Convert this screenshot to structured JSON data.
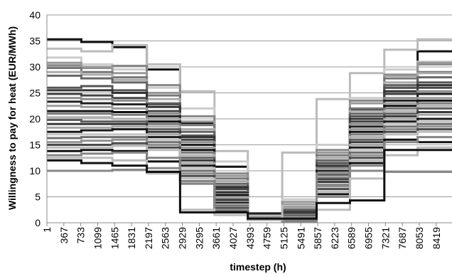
{
  "chart_data": {
    "type": "line",
    "step": true,
    "title": "",
    "xlabel": "timestep (h)",
    "ylabel": "Willingness  to pay for heat (EUR/MWh)",
    "xlim": [
      1,
      8760
    ],
    "ylim": [
      0,
      40
    ],
    "yticks": [
      0,
      5,
      10,
      15,
      20,
      25,
      30,
      35,
      40
    ],
    "xticks": [
      1,
      367,
      733,
      1099,
      1465,
      1831,
      2197,
      2563,
      2929,
      3295,
      3661,
      4027,
      4393,
      4759,
      5125,
      5491,
      5857,
      6223,
      6589,
      6955,
      7321,
      7687,
      8053,
      8419
    ],
    "grid": "horizontal",
    "legend": "none",
    "month_starts": [
      1,
      745,
      1417,
      2161,
      2881,
      3625,
      4345,
      5089,
      5833,
      6553,
      7297,
      8017,
      8760
    ],
    "series": [
      {
        "color": "#111111",
        "width": 3,
        "values": [
          35.3,
          34.8,
          33.8,
          29.5,
          19.2,
          10.8,
          1.8,
          1.0,
          11.5,
          21.8,
          26.0,
          33.0,
          35.6
        ]
      },
      {
        "color": "#bbbbbb",
        "width": 3,
        "values": [
          33.5,
          33.0,
          34.2,
          30.5,
          25.3,
          13.8,
          0.8,
          13.5,
          23.8,
          28.8,
          33.3,
          35.3,
          35.0
        ]
      },
      {
        "color": "#cccccc",
        "width": 3,
        "values": [
          31.8,
          30.5,
          29.5,
          26.0,
          22.0,
          11.8,
          1.3,
          4.5,
          15.0,
          24.0,
          29.5,
          31.0,
          31.0
        ]
      },
      {
        "color": "#888888",
        "width": 3,
        "values": [
          30.3,
          29.8,
          30.2,
          26.5,
          20.5,
          9.5,
          0.8,
          3.5,
          14.0,
          23.5,
          28.5,
          30.5,
          30.3
        ]
      },
      {
        "color": "#999999",
        "width": 3,
        "values": [
          30.8,
          30.0,
          28.8,
          25.0,
          19.5,
          9.0,
          1.0,
          4.0,
          13.5,
          23.0,
          28.3,
          30.8,
          30.5
        ]
      },
      {
        "color": "#777777",
        "width": 3,
        "values": [
          29.8,
          29.0,
          28.0,
          24.5,
          18.8,
          8.5,
          1.3,
          3.0,
          13.0,
          22.0,
          27.8,
          29.0,
          29.5
        ]
      },
      {
        "color": "#aaaaaa",
        "width": 3,
        "values": [
          29.0,
          28.5,
          27.5,
          23.8,
          18.0,
          8.0,
          0.6,
          2.8,
          12.5,
          21.5,
          27.0,
          28.8,
          28.5
        ]
      },
      {
        "color": "#666666",
        "width": 3,
        "values": [
          28.3,
          27.8,
          27.0,
          23.0,
          17.5,
          7.5,
          1.5,
          2.5,
          12.0,
          21.0,
          26.5,
          28.0,
          28.0
        ]
      },
      {
        "color": "#555555",
        "width": 3,
        "values": [
          26.0,
          26.3,
          25.5,
          22.8,
          16.8,
          7.0,
          0.8,
          2.3,
          11.5,
          20.5,
          26.0,
          27.0,
          27.5
        ]
      },
      {
        "color": "#333333",
        "width": 3,
        "values": [
          25.5,
          25.5,
          25.0,
          22.3,
          16.5,
          6.8,
          1.0,
          2.0,
          11.0,
          20.0,
          25.3,
          26.5,
          26.8
        ]
      },
      {
        "color": "#444444",
        "width": 3,
        "values": [
          24.8,
          24.5,
          24.0,
          21.5,
          16.0,
          6.5,
          0.8,
          1.8,
          10.8,
          19.5,
          24.8,
          26.0,
          26.0
        ]
      },
      {
        "color": "#8c8c8c",
        "width": 3,
        "values": [
          24.0,
          23.8,
          23.5,
          21.0,
          15.5,
          6.0,
          1.2,
          1.5,
          10.5,
          19.0,
          24.0,
          25.3,
          25.5
        ]
      },
      {
        "color": "#222222",
        "width": 3,
        "values": [
          23.3,
          23.0,
          22.8,
          20.5,
          15.0,
          5.8,
          0.8,
          1.3,
          10.0,
          18.5,
          23.5,
          24.8,
          24.8
        ]
      },
      {
        "color": "#9a9a9a",
        "width": 3,
        "values": [
          22.5,
          22.3,
          22.0,
          20.0,
          14.5,
          5.5,
          1.0,
          1.2,
          9.5,
          18.0,
          23.0,
          24.0,
          24.0
        ]
      },
      {
        "color": "#111111",
        "width": 3,
        "values": [
          21.5,
          21.5,
          21.3,
          19.5,
          14.0,
          5.3,
          0.8,
          1.0,
          9.2,
          17.5,
          22.5,
          23.5,
          23.3
        ]
      },
      {
        "color": "#7a7a7a",
        "width": 3,
        "values": [
          21.0,
          21.0,
          20.8,
          19.0,
          13.5,
          5.0,
          1.3,
          1.0,
          9.0,
          17.0,
          22.0,
          23.0,
          22.8
        ]
      },
      {
        "color": "#b0b0b0",
        "width": 3,
        "values": [
          20.3,
          20.3,
          20.0,
          18.5,
          13.0,
          4.8,
          0.6,
          0.8,
          8.8,
          16.5,
          21.5,
          22.5,
          22.0
        ]
      },
      {
        "color": "#5e5e5e",
        "width": 3,
        "values": [
          19.8,
          19.5,
          19.5,
          18.0,
          12.5,
          4.5,
          1.0,
          0.8,
          8.5,
          16.0,
          21.0,
          22.0,
          21.5
        ]
      },
      {
        "color": "#3a3a3a",
        "width": 3,
        "values": [
          19.0,
          19.0,
          19.0,
          17.5,
          12.0,
          4.3,
          0.8,
          0.6,
          8.2,
          15.5,
          20.5,
          21.3,
          21.0
        ]
      },
      {
        "color": "#a5a5a5",
        "width": 3,
        "values": [
          18.3,
          18.3,
          18.5,
          17.0,
          11.5,
          4.0,
          1.2,
          0.6,
          8.0,
          15.0,
          20.0,
          20.8,
          20.5
        ]
      },
      {
        "color": "#1a1a1a",
        "width": 3,
        "values": [
          17.5,
          17.8,
          18.0,
          16.5,
          11.0,
          3.8,
          0.8,
          0.5,
          7.8,
          14.5,
          19.5,
          20.0,
          20.0
        ]
      },
      {
        "color": "#c5c5c5",
        "width": 3,
        "values": [
          17.0,
          17.0,
          17.0,
          16.0,
          10.5,
          3.5,
          1.0,
          0.5,
          7.5,
          14.0,
          19.0,
          19.5,
          19.3
        ]
      },
      {
        "color": "#6e6e6e",
        "width": 3,
        "values": [
          16.3,
          16.5,
          16.5,
          15.5,
          10.0,
          3.3,
          0.6,
          0.5,
          7.2,
          13.5,
          18.5,
          19.0,
          18.8
        ]
      },
      {
        "color": "#909090",
        "width": 3,
        "values": [
          15.5,
          15.8,
          16.0,
          15.0,
          9.5,
          3.0,
          1.0,
          0.4,
          7.0,
          13.0,
          18.0,
          18.5,
          18.3
        ]
      },
      {
        "color": "#4a4a4a",
        "width": 3,
        "values": [
          15.0,
          15.0,
          15.3,
          14.5,
          9.0,
          2.8,
          0.8,
          0.4,
          6.5,
          12.5,
          17.5,
          18.0,
          17.5
        ]
      },
      {
        "color": "#bcbcbc",
        "width": 3,
        "values": [
          14.5,
          14.5,
          14.8,
          14.0,
          8.5,
          2.5,
          1.3,
          0.4,
          6.0,
          12.0,
          17.0,
          17.5,
          17.0
        ]
      },
      {
        "color": "#111111",
        "width": 3,
        "values": [
          13.8,
          14.0,
          13.8,
          11.8,
          8.0,
          2.3,
          0.6,
          0.3,
          5.5,
          11.5,
          16.0,
          15.5,
          15.8
        ]
      },
      {
        "color": "#858585",
        "width": 3,
        "values": [
          13.0,
          13.3,
          13.5,
          12.5,
          7.5,
          2.0,
          1.0,
          0.3,
          5.0,
          11.0,
          15.5,
          16.5,
          16.3
        ]
      },
      {
        "color": "#888888",
        "width": 3,
        "values": [
          10.0,
          10.0,
          10.2,
          10.5,
          8.0,
          2.5,
          1.0,
          1.0,
          9.5,
          10.0,
          9.8,
          9.8,
          10.0
        ]
      },
      {
        "color": "#bbbbbb",
        "width": 3,
        "values": [
          12.5,
          12.5,
          12.0,
          9.5,
          2.5,
          1.5,
          0.6,
          3.3,
          2.5,
          8.5,
          13.0,
          14.5,
          15.0
        ]
      },
      {
        "color": "#111111",
        "width": 3,
        "values": [
          12.0,
          11.5,
          11.0,
          9.8,
          2.0,
          2.0,
          0.8,
          0.8,
          3.8,
          4.3,
          14.0,
          14.0,
          15.0
        ]
      }
    ]
  }
}
